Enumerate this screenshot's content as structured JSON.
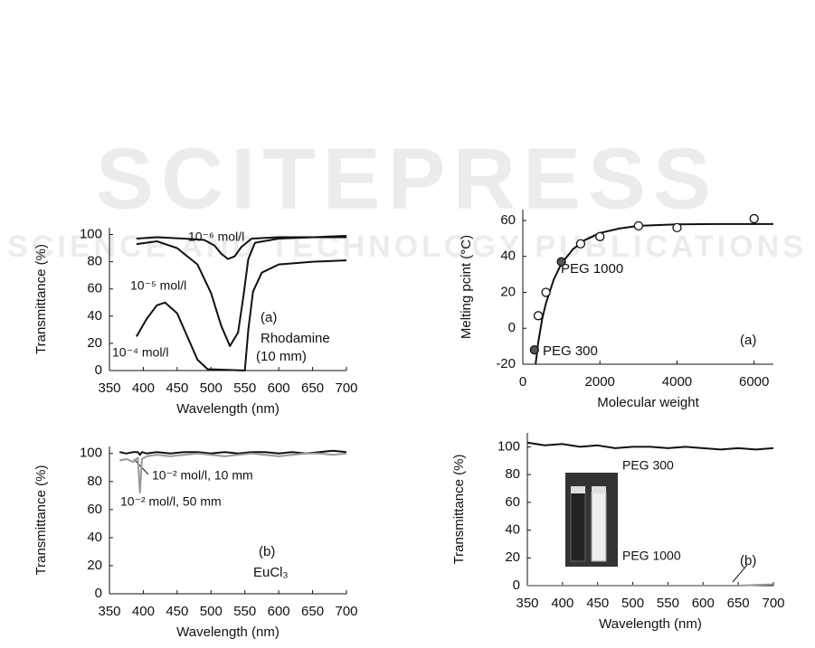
{
  "watermark": {
    "title": "SCITEPRESS",
    "subtitle": "SCIENCE AND TECHNOLOGY PUBLICATIONS"
  },
  "chart_data": [
    {
      "type": "line",
      "x_label": "Wavelength (nm)",
      "y_label": "Transmittance (%)",
      "xlim": [
        350,
        700
      ],
      "xticks": [
        350,
        400,
        450,
        500,
        550,
        600,
        650,
        700
      ],
      "ylim": [
        0,
        105
      ],
      "yticks": [
        0,
        20,
        40,
        60,
        80,
        100
      ],
      "annotations": [
        "(a)",
        "Rhodamine",
        "(10 mm)"
      ],
      "series": [
        {
          "name": "10⁻⁶ mol/l",
          "color": "#111111",
          "x": [
            390,
            420,
            460,
            490,
            505,
            515,
            525,
            535,
            545,
            560,
            600,
            650,
            700
          ],
          "values": [
            97,
            98,
            97,
            96,
            92,
            86,
            82,
            84,
            91,
            97,
            98,
            98,
            99
          ]
        },
        {
          "name": "10⁻⁵ mol/l",
          "color": "#111111",
          "x": [
            390,
            420,
            450,
            480,
            500,
            515,
            528,
            540,
            548,
            555,
            565,
            600,
            650,
            700
          ],
          "values": [
            93,
            95,
            90,
            78,
            57,
            33,
            18,
            28,
            55,
            82,
            94,
            97,
            98,
            98
          ]
        },
        {
          "name": "10⁻⁴ mol/l",
          "color": "#111111",
          "x": [
            390,
            405,
            420,
            432,
            450,
            465,
            480,
            495,
            550,
            555,
            562,
            575,
            600,
            650,
            700
          ],
          "values": [
            25,
            38,
            48,
            50,
            42,
            25,
            8,
            1,
            0,
            30,
            58,
            72,
            78,
            80,
            81
          ]
        }
      ]
    },
    {
      "type": "line",
      "x_label": "Wavelength (nm)",
      "y_label": "Transmittance (%)",
      "xlim": [
        350,
        700
      ],
      "xticks": [
        350,
        400,
        450,
        500,
        550,
        600,
        650,
        700
      ],
      "ylim": [
        0,
        105
      ],
      "yticks": [
        0,
        20,
        40,
        60,
        80,
        100
      ],
      "annotations": [
        "(b)",
        "EuCl₃"
      ],
      "series": [
        {
          "name": "10⁻² mol/l, 10 mm",
          "color": "#111111",
          "x": [
            365,
            375,
            385,
            392,
            395,
            398,
            405,
            420,
            440,
            460,
            480,
            500,
            520,
            540,
            560,
            580,
            600,
            620,
            640,
            660,
            680,
            700
          ],
          "values": [
            101,
            100,
            101,
            101,
            99,
            101,
            100,
            101,
            100,
            101,
            101,
            100,
            101,
            100,
            101,
            101,
            100,
            101,
            100,
            101,
            102,
            101
          ]
        },
        {
          "name": "10⁻² mol/l, 50 mm",
          "color": "#999999",
          "x": [
            365,
            375,
            385,
            392,
            395,
            398,
            405,
            420,
            440,
            460,
            480,
            500,
            520,
            540,
            560,
            580,
            600,
            620,
            640,
            660,
            680,
            700
          ],
          "values": [
            95,
            96,
            94,
            97,
            72,
            96,
            98,
            99,
            98,
            99,
            100,
            99,
            98,
            99,
            100,
            99,
            98,
            99,
            100,
            100,
            99,
            100
          ]
        }
      ]
    },
    {
      "type": "scatter",
      "x_label": "Molecular weight",
      "y_label": "Melting pcint (°C)",
      "xlim": [
        0,
        6500
      ],
      "xticks": [
        0,
        2000,
        4000,
        6000
      ],
      "ylim": [
        -20,
        66
      ],
      "yticks": [
        -20,
        0,
        20,
        40,
        60
      ],
      "annotations": [
        "PEG 300",
        "PEG 1000",
        "(a)"
      ],
      "fit": {
        "color": "#111111",
        "x": [
          330,
          400,
          500,
          600,
          800,
          1000,
          1300,
          1600,
          2000,
          2500,
          3000,
          4000,
          5000,
          6500
        ],
        "values": [
          -20,
          -8,
          5,
          14,
          27,
          36,
          44,
          49,
          53,
          55.5,
          57,
          57.8,
          58,
          58
        ]
      },
      "series": [
        {
          "color": "#ffffff",
          "x": [
            400,
            600,
            1500,
            2000,
            3000,
            4000,
            6000
          ],
          "values": [
            7,
            20,
            47,
            51,
            57,
            56,
            61
          ]
        },
        {
          "color": "#555555",
          "x": [
            300,
            1000
          ],
          "values": [
            -12,
            37
          ]
        }
      ]
    },
    {
      "type": "line",
      "x_label": "Wavelength (nm)",
      "y_label": "Transmittance (%)",
      "xlim": [
        350,
        700
      ],
      "xticks": [
        350,
        400,
        450,
        500,
        550,
        600,
        650,
        700
      ],
      "ylim": [
        0,
        110
      ],
      "yticks": [
        0,
        20,
        40,
        60,
        80,
        100
      ],
      "annotations": [
        "(b)"
      ],
      "series": [
        {
          "name": "PEG 300",
          "color": "#111111",
          "x": [
            350,
            375,
            400,
            425,
            450,
            475,
            500,
            525,
            550,
            575,
            600,
            625,
            650,
            675,
            700
          ],
          "values": [
            103,
            101,
            102,
            100,
            101,
            99,
            100,
            100,
            99,
            100,
            99,
            98,
            99,
            98,
            99
          ]
        },
        {
          "name": "PEG 1000",
          "color": "#999999",
          "x": [
            350,
            375,
            400,
            425,
            450,
            475,
            500,
            525,
            550,
            575,
            600,
            625,
            650,
            675,
            700
          ],
          "values": [
            0,
            0,
            0,
            0,
            0,
            0,
            0,
            0,
            0,
            0,
            0,
            0,
            0,
            0.5,
            1
          ]
        }
      ]
    }
  ]
}
